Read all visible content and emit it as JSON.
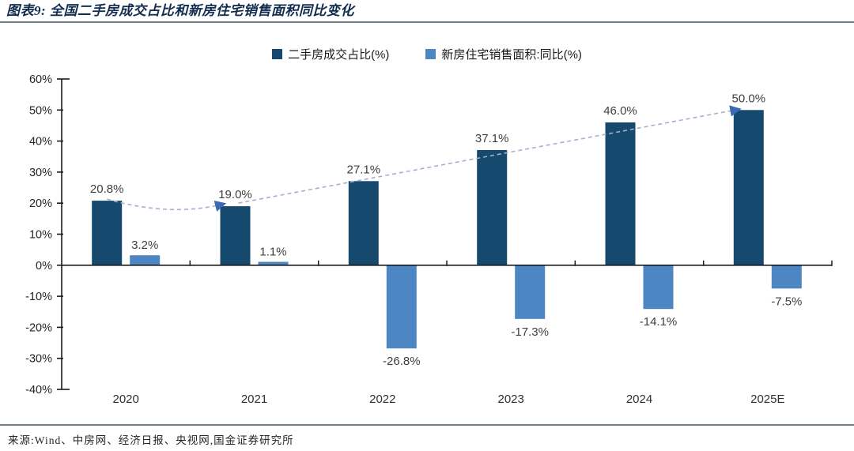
{
  "header": {
    "title": "图表9: 全国二手房成交占比和新房住宅销售面积同比变化"
  },
  "footer": {
    "source": "来源:Wind、中房网、经济日报、央视网,国金证券研究所"
  },
  "chart_data": {
    "type": "bar",
    "title": "全国二手房成交占比和新房住宅销售面积同比变化",
    "categories": [
      "2020",
      "2021",
      "2022",
      "2023",
      "2024",
      "2025E"
    ],
    "series": [
      {
        "name": "二手房成交占比(%)",
        "color": "#15496d",
        "values": [
          20.8,
          19.0,
          27.1,
          37.1,
          46.0,
          50.0
        ],
        "labels": [
          "20.8%",
          "19.0%",
          "27.1%",
          "37.1%",
          "46.0%",
          "50.0%"
        ]
      },
      {
        "name": "新房住宅销售面积:同比(%)",
        "color": "#4d87c3",
        "values": [
          3.2,
          1.1,
          -26.8,
          -17.3,
          -14.1,
          -7.5
        ],
        "labels": [
          "3.2%",
          "1.1%",
          "-26.8%",
          "-17.3%",
          "-14.1%",
          "-7.5%"
        ]
      }
    ],
    "trendline": {
      "on_series": 0,
      "style": "dashed",
      "color": "#a3b0cf",
      "arrow_color": "#3c6ab2",
      "note": "dashed arrow line following series-0 bar tops, arrowheads at 2021 and 2025E"
    },
    "ylim": [
      -40,
      60
    ],
    "ytick_step": 10,
    "ytick_labels": [
      "60%",
      "50%",
      "40%",
      "30%",
      "20%",
      "10%",
      "0%",
      "-10%",
      "-20%",
      "-30%",
      "-40%"
    ],
    "grid": false,
    "legend_position": "top",
    "label_color": "#3f3f3f",
    "axis_color": "#1a1a1a"
  }
}
